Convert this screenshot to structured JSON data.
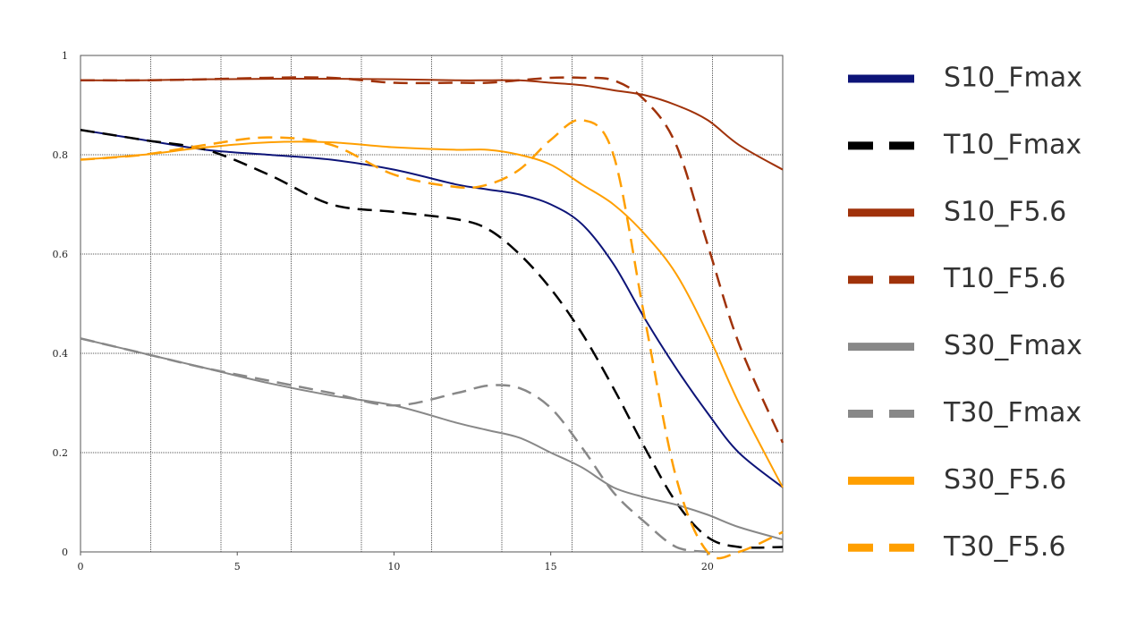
{
  "chart_data": {
    "type": "line",
    "x": [
      0,
      2,
      4,
      6,
      8,
      10,
      12,
      13,
      14,
      15,
      16,
      17,
      18,
      19,
      20,
      21,
      22.4
    ],
    "xlim": [
      0,
      22.4
    ],
    "xticks": [
      0,
      5,
      10,
      15,
      20
    ],
    "ylim": [
      0,
      1
    ],
    "yticks": [
      0,
      0.2,
      0.4,
      0.6,
      0.8,
      1
    ],
    "grid": true,
    "series": [
      {
        "name": "S10_Fmax",
        "color": "#0d1478",
        "dashed": false,
        "values": [
          0.85,
          0.83,
          0.81,
          0.8,
          0.79,
          0.77,
          0.74,
          0.73,
          0.72,
          0.7,
          0.66,
          0.58,
          0.47,
          0.37,
          0.28,
          0.2,
          0.13
        ]
      },
      {
        "name": "T10_Fmax",
        "color": "#000000",
        "dashed": true,
        "values": [
          0.85,
          0.83,
          0.81,
          0.76,
          0.7,
          0.685,
          0.67,
          0.65,
          0.6,
          0.53,
          0.44,
          0.33,
          0.21,
          0.1,
          0.03,
          0.01,
          0.01
        ]
      },
      {
        "name": "S10_F5.6",
        "color": "#a0320a",
        "dashed": false,
        "values": [
          0.95,
          0.95,
          0.952,
          0.953,
          0.953,
          0.952,
          0.95,
          0.95,
          0.95,
          0.945,
          0.94,
          0.93,
          0.92,
          0.9,
          0.87,
          0.82,
          0.77
        ]
      },
      {
        "name": "T10_F5.6",
        "color": "#a0320a",
        "dashed": true,
        "values": [
          0.95,
          0.95,
          0.952,
          0.955,
          0.955,
          0.945,
          0.945,
          0.945,
          0.95,
          0.955,
          0.955,
          0.95,
          0.91,
          0.82,
          0.62,
          0.42,
          0.22
        ]
      },
      {
        "name": "S30_Fmax",
        "color": "#888888",
        "dashed": false,
        "values": [
          0.43,
          0.4,
          0.37,
          0.34,
          0.315,
          0.295,
          0.26,
          0.245,
          0.23,
          0.2,
          0.17,
          0.13,
          0.11,
          0.095,
          0.075,
          0.05,
          0.025
        ]
      },
      {
        "name": "T30_Fmax",
        "color": "#888888",
        "dashed": true,
        "values": [
          0.43,
          0.4,
          0.37,
          0.345,
          0.32,
          0.295,
          0.32,
          0.335,
          0.33,
          0.29,
          0.21,
          0.12,
          0.06,
          0.01,
          0,
          null,
          null
        ]
      },
      {
        "name": "S30_F5.6",
        "color": "#ff9f00",
        "dashed": false,
        "values": [
          0.79,
          0.8,
          0.815,
          0.825,
          0.825,
          0.815,
          0.81,
          0.81,
          0.8,
          0.78,
          0.74,
          0.7,
          0.64,
          0.56,
          0.44,
          0.3,
          0.13
        ]
      },
      {
        "name": "T30_F5.6",
        "color": "#ff9f00",
        "dashed": true,
        "values": [
          0.79,
          0.8,
          0.82,
          0.835,
          0.82,
          0.76,
          0.735,
          0.74,
          0.77,
          0.83,
          0.87,
          0.8,
          0.47,
          0.15,
          0,
          0,
          0.04
        ]
      }
    ]
  }
}
